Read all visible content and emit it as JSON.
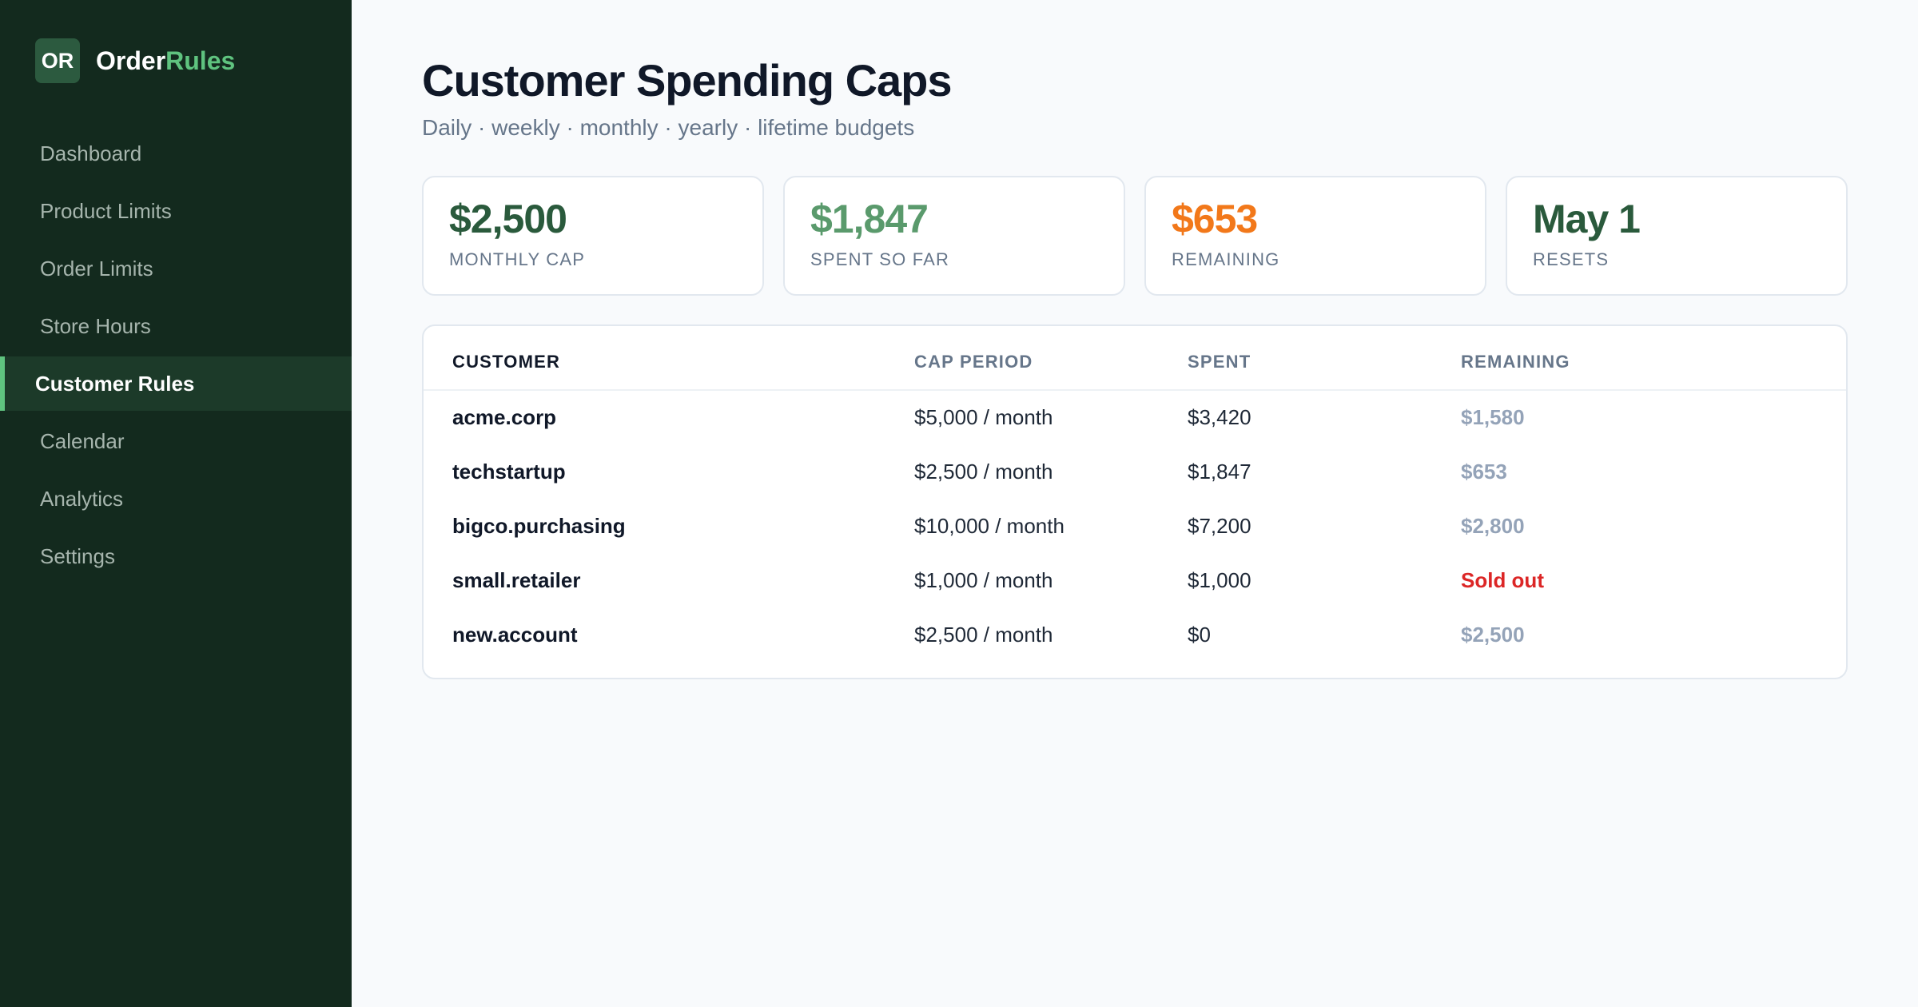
{
  "brand": {
    "badge": "OR",
    "name_part1": "Order",
    "name_part2": "Rules"
  },
  "sidebar": {
    "items": [
      {
        "label": "Dashboard",
        "active": false
      },
      {
        "label": "Product Limits",
        "active": false
      },
      {
        "label": "Order Limits",
        "active": false
      },
      {
        "label": "Store Hours",
        "active": false
      },
      {
        "label": "Customer Rules",
        "active": true
      },
      {
        "label": "Calendar",
        "active": false
      },
      {
        "label": "Analytics",
        "active": false
      },
      {
        "label": "Settings",
        "active": false
      }
    ]
  },
  "header": {
    "title": "Customer Spending Caps",
    "subtitle": "Daily · weekly · monthly · yearly · lifetime budgets"
  },
  "stats": [
    {
      "value": "$2,500",
      "label": "Monthly cap",
      "color": "#2a5a3c"
    },
    {
      "value": "$1,847",
      "label": "Spent so far",
      "color": "#5a9a6c"
    },
    {
      "value": "$653",
      "label": "Remaining",
      "color": "#f2781a"
    },
    {
      "value": "May 1",
      "label": "Resets",
      "color": "#2a5a3c"
    }
  ],
  "table": {
    "headers": [
      "CUSTOMER",
      "CAP PERIOD",
      "SPENT",
      "REMAINING"
    ],
    "rows": [
      {
        "customer": "acme.corp",
        "cap": "$5,000 / month",
        "spent": "$3,420",
        "remaining": "$1,580",
        "status": "normal"
      },
      {
        "customer": "techstartup",
        "cap": "$2,500 / month",
        "spent": "$1,847",
        "remaining": "$653",
        "status": "normal"
      },
      {
        "customer": "bigco.purchasing",
        "cap": "$10,000 / month",
        "spent": "$7,200",
        "remaining": "$2,800",
        "status": "normal"
      },
      {
        "customer": "small.retailer",
        "cap": "$1,000 / month",
        "spent": "$1,000",
        "remaining": "Sold out",
        "status": "soldout"
      },
      {
        "customer": "new.account",
        "cap": "$2,500 / month",
        "spent": "$0",
        "remaining": "$2,500",
        "status": "normal"
      }
    ]
  },
  "colors": {
    "sidebar_bg": "#132a1e",
    "accent": "#5fc37f",
    "sold_out": "#dc2626"
  }
}
